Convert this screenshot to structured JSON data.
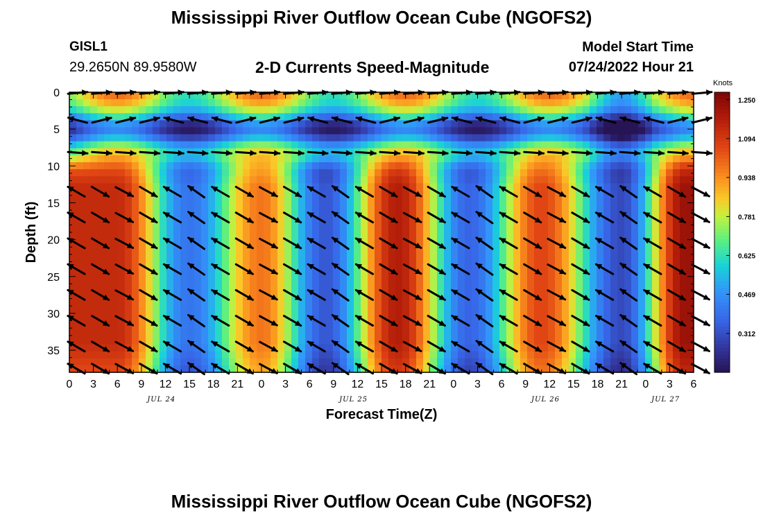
{
  "chart_data": {
    "type": "heatmap",
    "title": "Mississippi River Outflow Ocean Cube (NGOFS2)",
    "station_id": "GISL1",
    "station_coords": "29.2650N  89.9580W",
    "subtitle": "2-D Currents Speed-Magnitude",
    "model_start_label": "Model Start Time",
    "model_start_value": "07/24/2022 Hour 21",
    "ylabel": "Depth (ft)",
    "xlabel": "Forecast Time(Z)",
    "ylim": [
      0,
      38
    ],
    "y_ticks": [
      0,
      5,
      10,
      15,
      20,
      25,
      30,
      35
    ],
    "x_range_hours": [
      0,
      78
    ],
    "x_tick_hours": [
      0,
      3,
      6,
      9,
      12,
      15,
      18,
      21,
      24,
      27,
      30,
      33,
      36,
      39,
      42,
      45,
      48,
      51,
      54,
      57,
      60,
      63,
      66,
      69,
      72,
      75,
      78
    ],
    "x_tick_labels": [
      "0",
      "3",
      "6",
      "9",
      "12",
      "15",
      "18",
      "21",
      "0",
      "3",
      "6",
      "9",
      "12",
      "15",
      "18",
      "21",
      "0",
      "3",
      "6",
      "9",
      "12",
      "15",
      "18",
      "21",
      "0",
      "3",
      "6"
    ],
    "date_labels": [
      {
        "text": "JUL 24",
        "hour": 11.5
      },
      {
        "text": "JUL 25",
        "hour": 35.5
      },
      {
        "text": "JUL 26",
        "hour": 59.5
      },
      {
        "text": "JUL 27",
        "hour": 74.5
      }
    ],
    "colorbar": {
      "title": "Knots",
      "min": 0.156,
      "max": 1.28,
      "ticks": [
        1.25,
        1.094,
        0.938,
        0.781,
        0.625,
        0.469,
        0.312
      ],
      "tick_labels": [
        "1.250",
        "1.094",
        "0.938",
        "0.781",
        "0.625",
        "0.469",
        "0.312"
      ]
    },
    "lower_layer_speed_peaks": [
      {
        "hour": 6,
        "speed": 1.13
      },
      {
        "hour": 24,
        "speed": 0.98
      },
      {
        "hour": 41,
        "speed": 1.17
      },
      {
        "hour": 59,
        "speed": 1.06
      },
      {
        "hour": 77,
        "speed": 1.22
      }
    ],
    "lower_layer_speed_minima": [
      {
        "hour": 15,
        "speed": 0.4
      },
      {
        "hour": 32,
        "speed": 0.33
      },
      {
        "hour": 50,
        "speed": 0.36
      },
      {
        "hour": 69,
        "speed": 0.3
      }
    ],
    "arrow_depths": [
      13.5,
      17,
      20.5,
      24,
      27.5,
      31,
      34.5,
      37.5
    ],
    "surface_arrow_depths": [
      0,
      3.8,
      8.2
    ]
  },
  "footer": {
    "title": "Mississippi River Outflow Ocean Cube (NGOFS2)"
  }
}
